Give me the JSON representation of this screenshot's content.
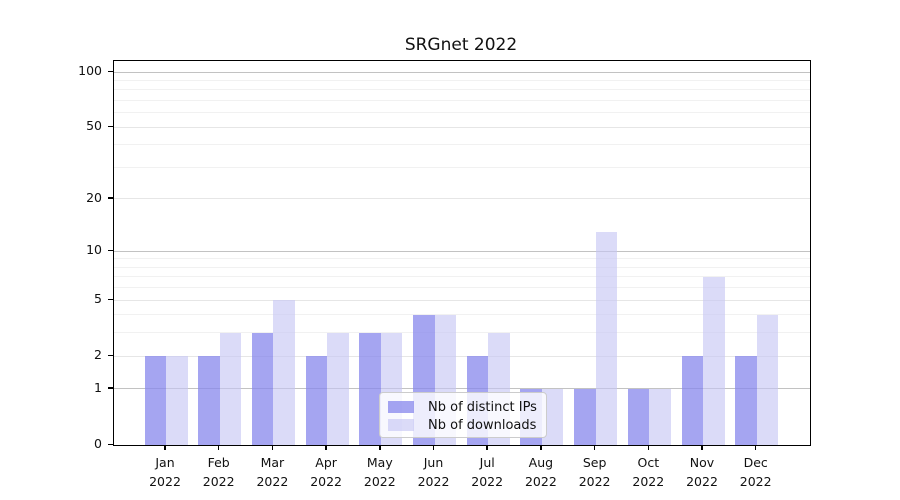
{
  "chart_data": {
    "type": "bar",
    "title": "SRGnet 2022",
    "categories": [
      {
        "month": "Jan",
        "year": "2022"
      },
      {
        "month": "Feb",
        "year": "2022"
      },
      {
        "month": "Mar",
        "year": "2022"
      },
      {
        "month": "Apr",
        "year": "2022"
      },
      {
        "month": "May",
        "year": "2022"
      },
      {
        "month": "Jun",
        "year": "2022"
      },
      {
        "month": "Jul",
        "year": "2022"
      },
      {
        "month": "Aug",
        "year": "2022"
      },
      {
        "month": "Sep",
        "year": "2022"
      },
      {
        "month": "Oct",
        "year": "2022"
      },
      {
        "month": "Nov",
        "year": "2022"
      },
      {
        "month": "Dec",
        "year": "2022"
      }
    ],
    "series": [
      {
        "name": "Nb of distinct IPs",
        "color": "rgba(135,135,236,0.75)",
        "values": [
          2,
          2,
          3,
          2,
          3,
          4,
          2,
          1,
          1,
          1,
          2,
          2
        ]
      },
      {
        "name": "Nb of downloads",
        "color": "rgba(197,197,243,0.62)",
        "values": [
          2,
          3,
          5,
          3,
          3,
          4,
          3,
          1,
          13,
          1,
          7,
          4
        ]
      }
    ],
    "y_axis": {
      "scale": "symlog",
      "tick_labels": [
        0,
        1,
        2,
        5,
        10,
        20,
        50,
        100
      ],
      "major_gridlines": [
        1,
        10,
        100
      ],
      "mid_gridlines": [
        2,
        5,
        20,
        50
      ],
      "minor_gridlines": [
        3,
        4,
        6,
        7,
        8,
        9,
        30,
        40,
        60,
        70,
        80,
        90
      ],
      "range_max": 113
    },
    "legend_position": "bottom-center",
    "colors": {
      "major_grid": "#c2c2c2",
      "mid_grid": "#e6e6e6",
      "minor_grid": "#f1f1f1",
      "axis": "#000000"
    }
  }
}
